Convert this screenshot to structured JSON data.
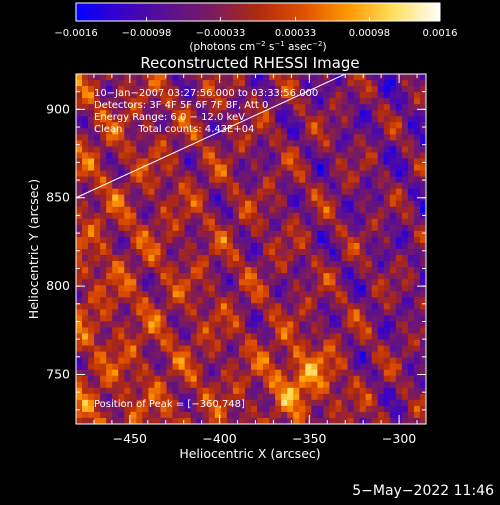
{
  "colorbar": {
    "tick_labels": [
      "−0.0016",
      "−0.00098",
      "−0.00033",
      "0.00033",
      "0.00098",
      "0.0016"
    ],
    "tick_values": [
      -0.0016,
      -0.00098,
      -0.00033,
      0.00033,
      0.00098,
      0.0016
    ],
    "range": [
      -0.0016,
      0.0016
    ],
    "units_prefix": "(photons cm",
    "units_exp1": "−2",
    "units_mid1": " s",
    "units_exp2": "−1",
    "units_mid2": " asec",
    "units_exp3": "−2",
    "units_suffix": ")",
    "stops": [
      "#0000ff",
      "#3a00c8",
      "#5a1090",
      "#7a1a60",
      "#b02a10",
      "#e05000",
      "#ff9a00",
      "#ffe060",
      "#ffffff"
    ]
  },
  "chart_data": {
    "type": "heatmap",
    "title": "Reconstructed RHESSI Image",
    "xlabel": "Heliocentric X (arcsec)",
    "ylabel": "Heliocentric Y (arcsec)",
    "xlim": [
      -480,
      -285
    ],
    "ylim": [
      722,
      920
    ],
    "xticks": [
      -450,
      -400,
      -350,
      -300
    ],
    "xtick_labels": [
      "−450",
      "−400",
      "−350",
      "−300"
    ],
    "yticks": [
      750,
      800,
      850,
      900
    ],
    "ytick_labels": [
      "750",
      "800",
      "850",
      "900"
    ],
    "limb_line": [
      [
        -480,
        850
      ],
      [
        -330,
        920
      ]
    ],
    "peak_position": [
      -360,
      748
    ],
    "annotations": [
      "10−Jan−2007 03:27:56.000 to 03:33:56.000",
      "Detectors: 3F 4F 5F 6F 7F 8F, Att 0",
      "Energy Range: 6.0 − 12.0 keV",
      "Clean     Total counts: 4.43E+04"
    ],
    "peak_label": "Position of Peak = [−360,748]"
  },
  "footer": {
    "date": "5−May−2022 11:46"
  }
}
